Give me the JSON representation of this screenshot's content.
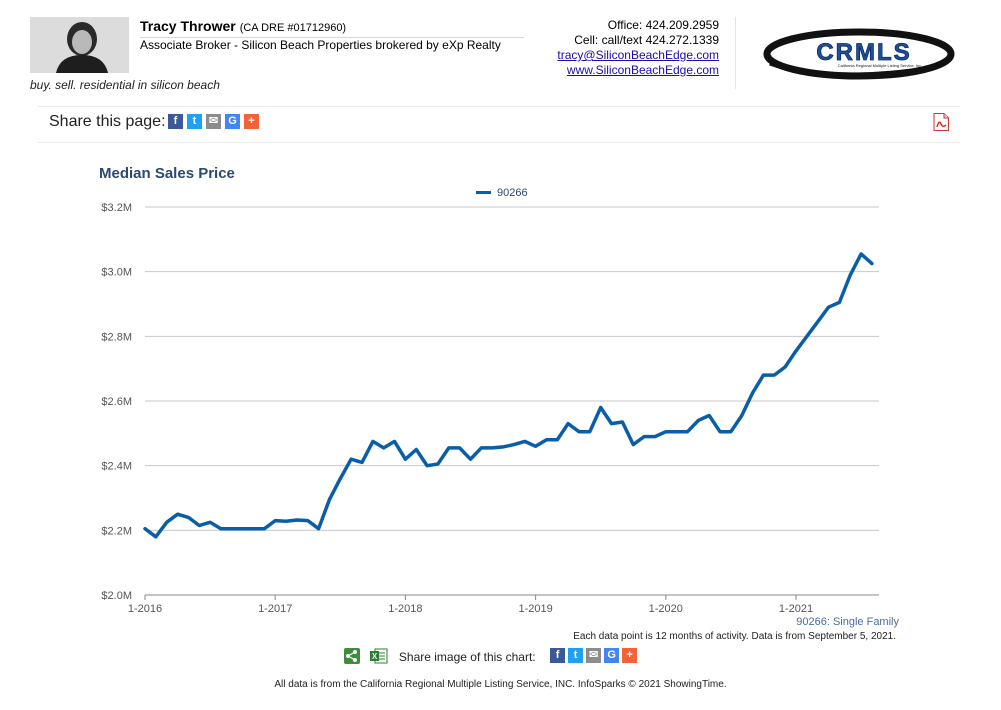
{
  "header": {
    "agent_name": "Tracy Thrower",
    "dre": "(CA DRE #01712960)",
    "title": "Associate Broker - Silicon Beach Properties brokered by eXp Realty",
    "tagline": "buy. sell. residential in silicon beach",
    "office": "Office: 424.209.2959",
    "cell": "Cell: call/text 424.272.1339",
    "email": "tracy@SiliconBeachEdge.com",
    "website": "www.SiliconBeachEdge.com",
    "logo_text": "CRMLS",
    "logo_subtext": "California Regional Multiple Listing Service, Inc."
  },
  "share_bar": {
    "label": "Share this page:",
    "icons": [
      "facebook-icon",
      "twitter-icon",
      "email-icon",
      "google-icon",
      "plus-icon"
    ],
    "pdf_icon": "pdf-icon"
  },
  "chart_data": {
    "type": "line",
    "title": "Median Sales Price",
    "series": [
      {
        "name": "90266",
        "color": "#0a5ea8",
        "values": [
          2205000,
          2180000,
          2225000,
          2250000,
          2240000,
          2215000,
          2225000,
          2205000,
          2205000,
          2205000,
          2205000,
          2205000,
          2230000,
          2228000,
          2232000,
          2230000,
          2205000,
          2295000,
          2360000,
          2420000,
          2410000,
          2475000,
          2455000,
          2475000,
          2420000,
          2450000,
          2400000,
          2405000,
          2455000,
          2455000,
          2420000,
          2455000,
          2455000,
          2458000,
          2465000,
          2475000,
          2460000,
          2480000,
          2480000,
          2530000,
          2505000,
          2505000,
          2580000,
          2530000,
          2535000,
          2465000,
          2490000,
          2490000,
          2505000,
          2505000,
          2505000,
          2540000,
          2555000,
          2505000,
          2505000,
          2555000,
          2625000,
          2680000,
          2680000,
          2705000,
          2755000,
          2800000,
          2845000,
          2890000,
          2905000,
          2990000,
          3055000,
          3025000
        ]
      }
    ],
    "x_start": "1-2016",
    "x_tick_labels": [
      "1-2016",
      "1-2017",
      "1-2018",
      "1-2019",
      "1-2020",
      "1-2021"
    ],
    "y_tick_labels": [
      "$2.0M",
      "$2.2M",
      "$2.4M",
      "$2.6M",
      "$2.8M",
      "$3.0M",
      "$3.2M"
    ],
    "ylim": [
      2000000,
      3200000
    ],
    "grid": true,
    "legend": "top-center",
    "series_note": "90266: Single Family",
    "data_note": "Each data point is 12 months of activity. Data is from September 5, 2021."
  },
  "share_image": {
    "label": "Share image of this chart:",
    "icons": [
      "share-icon",
      "excel-icon",
      "facebook-icon",
      "twitter-icon",
      "email-icon",
      "google-icon",
      "plus-icon"
    ]
  },
  "footer": {
    "text": "All data is from the California Regional Multiple Listing Service, INC. InfoSparks © 2021 ShowingTime."
  }
}
